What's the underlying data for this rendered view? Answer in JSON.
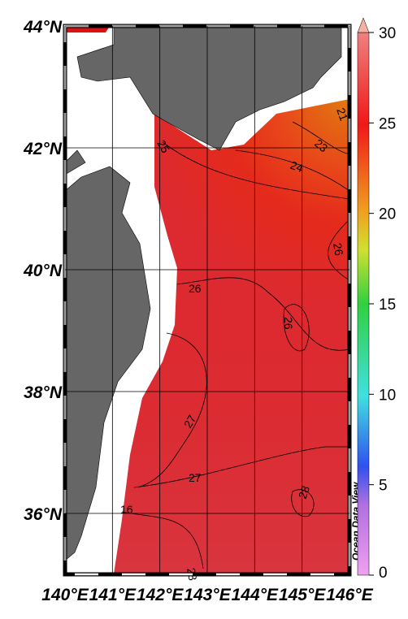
{
  "map": {
    "lon_range": [
      140,
      146
    ],
    "lat_range": [
      35,
      44
    ],
    "lat_ticks": [
      {
        "value": 44,
        "label": "44°N"
      },
      {
        "value": 42,
        "label": "42°N"
      },
      {
        "value": 40,
        "label": "40°N"
      },
      {
        "value": 38,
        "label": "38°N"
      },
      {
        "value": 36,
        "label": "36°N"
      }
    ],
    "lon_ticks": [
      {
        "value": 140,
        "label": "140°E"
      },
      {
        "value": 141,
        "label": "141°E"
      },
      {
        "value": 142,
        "label": "142°E"
      },
      {
        "value": 143,
        "label": "143°E"
      },
      {
        "value": 144,
        "label": "144°E"
      },
      {
        "value": 145,
        "label": "145°E"
      },
      {
        "value": 146,
        "label": "146°E"
      }
    ],
    "colorbar": {
      "range": [
        0,
        30
      ],
      "ticks": [
        0,
        5,
        10,
        15,
        20,
        25,
        30
      ]
    },
    "contour_labels": [
      "25",
      "24",
      "23",
      "21",
      "26",
      "26",
      "26",
      "27",
      "27",
      "28",
      "28",
      "16"
    ],
    "watermark": "Ocean Data View"
  }
}
